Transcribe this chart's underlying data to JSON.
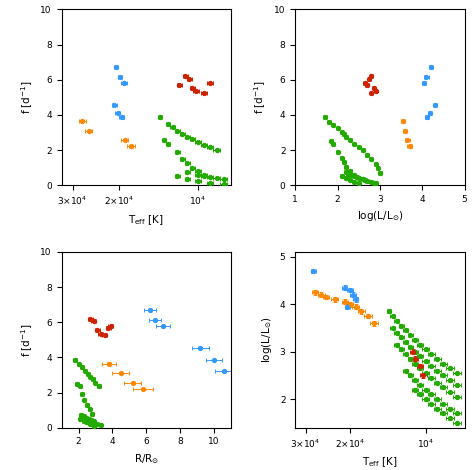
{
  "colors": {
    "blue": "#3399ff",
    "red": "#cc2200",
    "orange": "#ff8800",
    "green": "#22aa00"
  },
  "panel1": {
    "xlabel": "T$_{\\rm eff}$ [K]",
    "ylabel": "f [d$^{-1}$]",
    "blue_x": [
      20500,
      19800,
      19200,
      20800,
      20200,
      19500
    ],
    "blue_y": [
      6.7,
      6.15,
      5.8,
      4.55,
      4.1,
      3.85
    ],
    "blue_xerr": [
      400,
      400,
      500,
      400,
      400,
      400
    ],
    "blue_yerr": [
      0.06,
      0.06,
      0.06,
      0.06,
      0.06,
      0.06
    ],
    "red_x": [
      11200,
      10800,
      10500,
      10200,
      9500,
      11800,
      9000
    ],
    "red_y": [
      6.2,
      6.05,
      5.55,
      5.35,
      5.25,
      5.7,
      5.8
    ],
    "red_xerr": [
      250,
      250,
      250,
      250,
      250,
      250,
      250
    ],
    "red_yerr": [
      0.06,
      0.06,
      0.06,
      0.06,
      0.06,
      0.06,
      0.06
    ],
    "orange_x": [
      27500,
      26000,
      19000,
      18000
    ],
    "orange_y": [
      3.65,
      3.1,
      2.55,
      2.2
    ],
    "orange_xerr": [
      800,
      800,
      600,
      600
    ],
    "orange_yerr": [
      0.06,
      0.06,
      0.06,
      0.06
    ],
    "green_x": [
      14000,
      13000,
      12500,
      12000,
      11500,
      11000,
      10500,
      10000,
      9500,
      9000,
      8500,
      13500,
      13000,
      12000,
      11500,
      11000,
      10500,
      10000,
      9500,
      12000,
      11000,
      10000,
      9000,
      8000,
      11000,
      10000,
      9500,
      9000,
      8500,
      8000
    ],
    "green_y": [
      3.85,
      3.5,
      3.3,
      3.1,
      2.9,
      2.75,
      2.6,
      2.45,
      2.3,
      2.15,
      2.0,
      2.55,
      2.35,
      1.9,
      1.5,
      1.25,
      1.0,
      0.8,
      0.6,
      0.5,
      0.35,
      0.25,
      0.15,
      0.05,
      0.75,
      0.6,
      0.5,
      0.45,
      0.4,
      0.35
    ],
    "green_xerr": [
      250,
      250,
      250,
      250,
      250,
      250,
      250,
      250,
      250,
      250,
      250,
      250,
      250,
      250,
      250,
      250,
      250,
      250,
      250,
      250,
      250,
      250,
      250,
      250,
      250,
      250,
      250,
      250,
      250,
      250
    ],
    "green_yerr": [
      0.05,
      0.05,
      0.05,
      0.05,
      0.05,
      0.05,
      0.05,
      0.05,
      0.05,
      0.05,
      0.05,
      0.05,
      0.05,
      0.05,
      0.05,
      0.05,
      0.05,
      0.05,
      0.05,
      0.05,
      0.05,
      0.05,
      0.05,
      0.05,
      0.05,
      0.05,
      0.05,
      0.05,
      0.05,
      0.05
    ]
  },
  "panel2": {
    "xlabel": "log(L/L$_{\\odot}$)",
    "ylabel": "f [d$^{-1}$]",
    "blue_x": [
      4.2,
      4.1,
      4.05,
      4.3,
      4.18,
      4.12
    ],
    "blue_y": [
      6.7,
      6.15,
      5.8,
      4.55,
      4.1,
      3.85
    ],
    "blue_xerr": [
      0.05,
      0.05,
      0.05,
      0.05,
      0.05,
      0.05
    ],
    "blue_yerr": [
      0.06,
      0.06,
      0.06,
      0.06,
      0.06,
      0.06
    ],
    "red_x": [
      2.8,
      2.75,
      2.85,
      2.9,
      2.8,
      2.7,
      2.65
    ],
    "red_y": [
      6.2,
      6.05,
      5.55,
      5.35,
      5.25,
      5.7,
      5.8
    ],
    "red_xerr": [
      0.04,
      0.04,
      0.04,
      0.04,
      0.04,
      0.04,
      0.04
    ],
    "red_yerr": [
      0.06,
      0.06,
      0.06,
      0.06,
      0.06,
      0.06,
      0.06
    ],
    "orange_x": [
      3.55,
      3.6,
      3.65,
      3.7
    ],
    "orange_y": [
      3.65,
      3.1,
      2.55,
      2.2
    ],
    "orange_xerr": [
      0.05,
      0.05,
      0.05,
      0.05
    ],
    "orange_yerr": [
      0.06,
      0.06,
      0.06,
      0.06
    ],
    "green_x": [
      1.7,
      1.8,
      1.9,
      2.0,
      2.1,
      2.15,
      2.2,
      2.3,
      2.4,
      2.5,
      2.6,
      1.85,
      1.9,
      2.0,
      2.1,
      2.15,
      2.2,
      2.3,
      2.4,
      2.1,
      2.2,
      2.3,
      2.4,
      2.5,
      2.2,
      2.25,
      2.3,
      2.4,
      2.45,
      2.5,
      2.6,
      2.65,
      2.7,
      2.8,
      2.85,
      2.9,
      2.7,
      2.8,
      2.9,
      2.95,
      3.0
    ],
    "green_y": [
      3.85,
      3.6,
      3.45,
      3.25,
      3.05,
      2.9,
      2.75,
      2.55,
      2.35,
      2.15,
      2.0,
      2.5,
      2.35,
      1.9,
      1.55,
      1.3,
      1.05,
      0.8,
      0.6,
      0.5,
      0.4,
      0.3,
      0.2,
      0.1,
      0.75,
      0.65,
      0.55,
      0.5,
      0.45,
      0.4,
      0.35,
      0.3,
      0.25,
      0.2,
      0.15,
      0.1,
      1.7,
      1.5,
      1.2,
      0.95,
      0.7
    ],
    "green_xerr": [
      0.04,
      0.04,
      0.04,
      0.04,
      0.04,
      0.04,
      0.04,
      0.04,
      0.04,
      0.04,
      0.04,
      0.04,
      0.04,
      0.04,
      0.04,
      0.04,
      0.04,
      0.04,
      0.04,
      0.04,
      0.04,
      0.04,
      0.04,
      0.04,
      0.04,
      0.04,
      0.04,
      0.04,
      0.04,
      0.04,
      0.04,
      0.04,
      0.04,
      0.04,
      0.04,
      0.04,
      0.04,
      0.04,
      0.04,
      0.04,
      0.04
    ],
    "green_yerr": [
      0.05,
      0.05,
      0.05,
      0.05,
      0.05,
      0.05,
      0.05,
      0.05,
      0.05,
      0.05,
      0.05,
      0.05,
      0.05,
      0.05,
      0.05,
      0.05,
      0.05,
      0.05,
      0.05,
      0.05,
      0.05,
      0.05,
      0.05,
      0.05,
      0.05,
      0.05,
      0.05,
      0.05,
      0.05,
      0.05,
      0.05,
      0.05,
      0.05,
      0.05,
      0.05,
      0.05,
      0.05,
      0.05,
      0.05,
      0.05,
      0.05
    ]
  },
  "panel3": {
    "xlabel": "R/R$_{\\odot}$",
    "ylabel": "f [d$^{-1}$]",
    "blue_x": [
      6.2,
      6.5,
      7.0,
      9.2,
      10.0,
      10.6
    ],
    "blue_y": [
      6.7,
      6.15,
      5.8,
      4.55,
      3.85,
      3.25
    ],
    "blue_xerr": [
      0.35,
      0.35,
      0.4,
      0.5,
      0.5,
      0.55
    ],
    "blue_yerr": [
      0.06,
      0.06,
      0.06,
      0.06,
      0.06,
      0.06
    ],
    "red_x": [
      2.7,
      2.9,
      3.1,
      3.3,
      3.55,
      3.75,
      3.9
    ],
    "red_y": [
      6.2,
      6.05,
      5.55,
      5.35,
      5.25,
      5.7,
      5.8
    ],
    "red_xerr": [
      0.15,
      0.15,
      0.15,
      0.15,
      0.15,
      0.15,
      0.15
    ],
    "red_yerr": [
      0.06,
      0.06,
      0.06,
      0.06,
      0.06,
      0.06,
      0.06
    ],
    "orange_x": [
      3.8,
      4.5,
      5.2,
      5.8
    ],
    "orange_y": [
      3.65,
      3.1,
      2.55,
      2.2
    ],
    "orange_xerr": [
      0.4,
      0.5,
      0.5,
      0.6
    ],
    "orange_yerr": [
      0.06,
      0.06,
      0.06,
      0.06
    ],
    "green_x": [
      1.8,
      2.0,
      2.2,
      2.4,
      2.55,
      2.7,
      2.85,
      3.0,
      3.2,
      1.9,
      2.1,
      2.2,
      2.35,
      2.5,
      2.65,
      2.8,
      2.1,
      2.3,
      2.5,
      2.7,
      2.9,
      2.15,
      2.3,
      2.45,
      2.6,
      2.75,
      2.9,
      2.5,
      2.7,
      2.9,
      3.1,
      3.3
    ],
    "green_y": [
      3.85,
      3.6,
      3.45,
      3.25,
      3.05,
      2.9,
      2.75,
      2.55,
      2.35,
      2.5,
      2.35,
      1.9,
      1.55,
      1.3,
      1.05,
      0.8,
      0.5,
      0.4,
      0.3,
      0.2,
      0.1,
      0.75,
      0.65,
      0.55,
      0.5,
      0.45,
      0.4,
      0.35,
      0.3,
      0.25,
      0.2,
      0.15
    ],
    "green_xerr": [
      0.1,
      0.1,
      0.1,
      0.1,
      0.1,
      0.1,
      0.1,
      0.1,
      0.1,
      0.1,
      0.1,
      0.1,
      0.1,
      0.1,
      0.1,
      0.1,
      0.1,
      0.1,
      0.1,
      0.1,
      0.1,
      0.1,
      0.1,
      0.1,
      0.1,
      0.1,
      0.1,
      0.1,
      0.1,
      0.1,
      0.1,
      0.1
    ],
    "green_yerr": [
      0.05,
      0.05,
      0.05,
      0.05,
      0.05,
      0.05,
      0.05,
      0.05,
      0.05,
      0.05,
      0.05,
      0.05,
      0.05,
      0.05,
      0.05,
      0.05,
      0.05,
      0.05,
      0.05,
      0.05,
      0.05,
      0.05,
      0.05,
      0.05,
      0.05,
      0.05,
      0.05,
      0.05,
      0.05,
      0.05,
      0.05,
      0.05
    ]
  },
  "panel4": {
    "xlabel": "T$_{\\rm eff}$ [K]",
    "ylabel": "log(L/L$_{\\odot}$)",
    "blue_x": [
      28000,
      21000,
      20000,
      19500,
      19000,
      20500
    ],
    "blue_y": [
      4.7,
      4.35,
      4.3,
      4.2,
      4.1,
      3.95
    ],
    "blue_xerr": [
      600,
      500,
      500,
      500,
      500,
      500
    ],
    "blue_yerr": [
      0.05,
      0.05,
      0.05,
      0.05,
      0.05,
      0.05
    ],
    "red_x": [
      11200,
      11000,
      10500,
      10200
    ],
    "red_y": [
      3.0,
      2.85,
      2.7,
      2.5
    ],
    "red_xerr": [
      300,
      300,
      300,
      300
    ],
    "red_yerr": [
      0.05,
      0.05,
      0.05,
      0.05
    ],
    "orange_x": [
      27500,
      26000,
      25000,
      23000,
      21000,
      20000,
      19000,
      18000,
      17000,
      16000
    ],
    "orange_y": [
      4.25,
      4.2,
      4.15,
      4.1,
      4.05,
      4.0,
      3.95,
      3.85,
      3.75,
      3.6
    ],
    "orange_xerr": [
      800,
      800,
      700,
      700,
      600,
      600,
      600,
      600,
      600,
      600
    ],
    "orange_yerr": [
      0.05,
      0.05,
      0.05,
      0.05,
      0.05,
      0.05,
      0.05,
      0.05,
      0.05,
      0.05
    ],
    "green_x": [
      14000,
      13500,
      13000,
      12500,
      12000,
      11500,
      11000,
      10500,
      10000,
      9500,
      9000,
      8500,
      8000,
      7500,
      13500,
      13000,
      12500,
      12000,
      11500,
      11000,
      10500,
      10000,
      9500,
      9000,
      8500,
      8000,
      7500,
      13000,
      12500,
      12000,
      11500,
      11000,
      10500,
      10000,
      9500,
      9000,
      8500,
      8000,
      7500,
      12000,
      11500,
      11000,
      10500,
      10000,
      9500,
      9000,
      8500,
      8000,
      7500,
      11000,
      10500,
      10000,
      9500,
      9000,
      8500,
      8000,
      7500
    ],
    "green_y": [
      3.85,
      3.75,
      3.65,
      3.55,
      3.45,
      3.35,
      3.25,
      3.15,
      3.05,
      2.95,
      2.85,
      2.75,
      2.65,
      2.55,
      3.5,
      3.4,
      3.3,
      3.2,
      3.1,
      3.0,
      2.9,
      2.8,
      2.7,
      2.6,
      2.5,
      2.4,
      2.3,
      3.15,
      3.05,
      2.95,
      2.85,
      2.75,
      2.65,
      2.55,
      2.45,
      2.35,
      2.25,
      2.15,
      2.05,
      2.6,
      2.5,
      2.4,
      2.3,
      2.2,
      2.1,
      2.0,
      1.9,
      1.8,
      1.7,
      2.2,
      2.1,
      2.0,
      1.9,
      1.8,
      1.7,
      1.6,
      1.5
    ],
    "green_xerr": [
      300,
      300,
      300,
      300,
      300,
      300,
      300,
      300,
      300,
      300,
      300,
      300,
      300,
      300,
      300,
      300,
      300,
      300,
      300,
      300,
      300,
      300,
      300,
      300,
      300,
      300,
      300,
      300,
      300,
      300,
      300,
      300,
      300,
      300,
      300,
      300,
      300,
      300,
      300,
      300,
      300,
      300,
      300,
      300,
      300,
      300,
      300,
      300,
      300,
      300,
      300,
      300,
      300,
      300,
      300,
      300,
      300
    ],
    "green_yerr": [
      0.03,
      0.03,
      0.03,
      0.03,
      0.03,
      0.03,
      0.03,
      0.03,
      0.03,
      0.03,
      0.03,
      0.03,
      0.03,
      0.03,
      0.03,
      0.03,
      0.03,
      0.03,
      0.03,
      0.03,
      0.03,
      0.03,
      0.03,
      0.03,
      0.03,
      0.03,
      0.03,
      0.03,
      0.03,
      0.03,
      0.03,
      0.03,
      0.03,
      0.03,
      0.03,
      0.03,
      0.03,
      0.03,
      0.03,
      0.03,
      0.03,
      0.03,
      0.03,
      0.03,
      0.03,
      0.03,
      0.03,
      0.03,
      0.03,
      0.03,
      0.03,
      0.03,
      0.03,
      0.03,
      0.03,
      0.03,
      0.03
    ]
  }
}
